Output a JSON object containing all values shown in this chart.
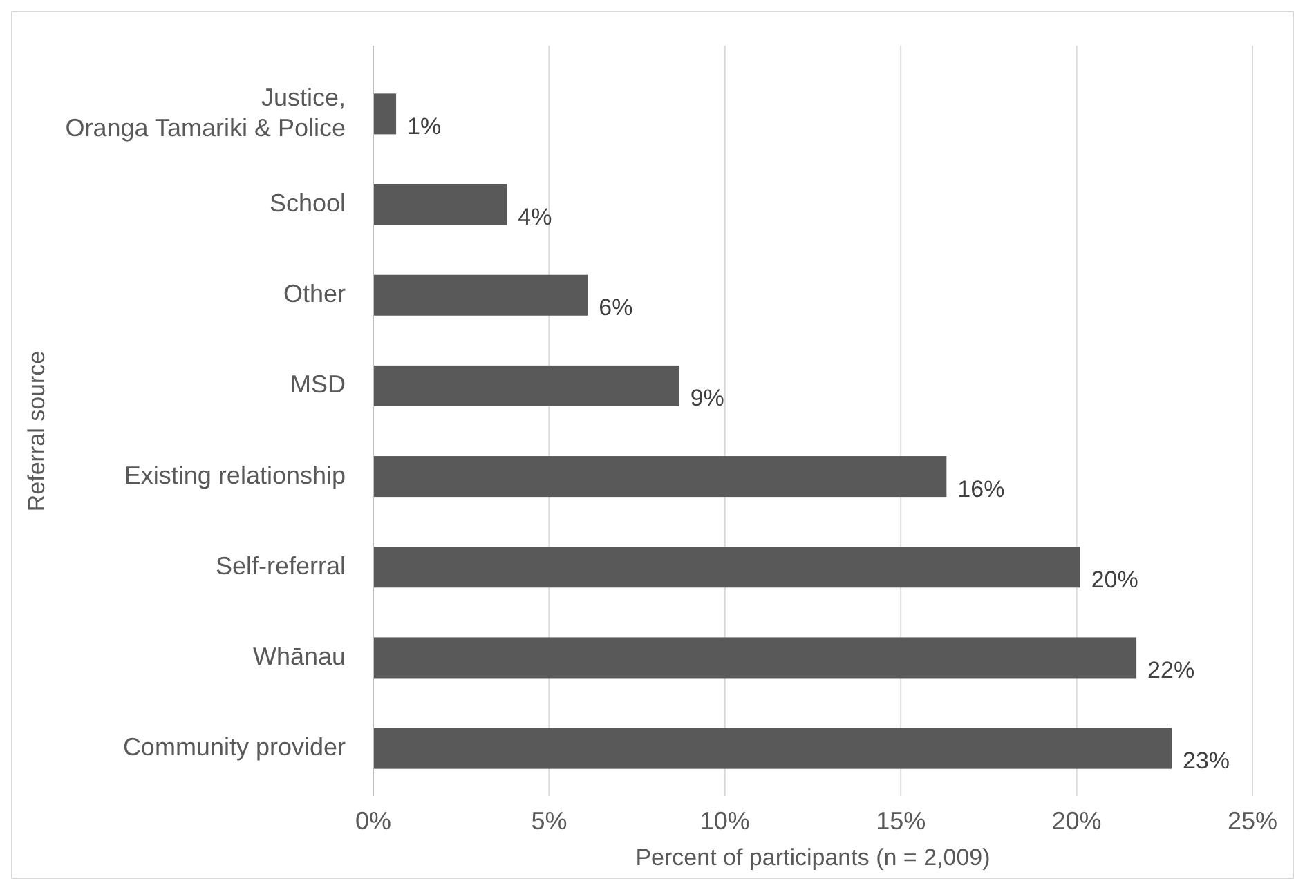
{
  "chart_data": {
    "type": "bar",
    "orientation": "horizontal",
    "xlabel": "Percent of participants (n = 2,009)",
    "ylabel": "Referral source",
    "categories": [
      "Justice,\nOranga Tamariki & Police",
      "School",
      "Other",
      "MSD",
      "Existing relationship",
      "Self-referral",
      "Whānau",
      "Community provider"
    ],
    "values": [
      0.65,
      3.8,
      6.1,
      8.7,
      16.3,
      20.1,
      21.7,
      22.7
    ],
    "value_labels": [
      "1%",
      "4%",
      "6%",
      "9%",
      "16%",
      "20%",
      "22%",
      "23%"
    ],
    "color": "#595959",
    "xlim": [
      0,
      25
    ],
    "xticks": [
      {
        "value": 0,
        "label": "0%"
      },
      {
        "value": 5,
        "label": "5%"
      },
      {
        "value": 10,
        "label": "10%"
      },
      {
        "value": 15,
        "label": "15%"
      },
      {
        "value": 20,
        "label": "20%"
      },
      {
        "value": 25,
        "label": "25%"
      }
    ],
    "grid": "x"
  }
}
